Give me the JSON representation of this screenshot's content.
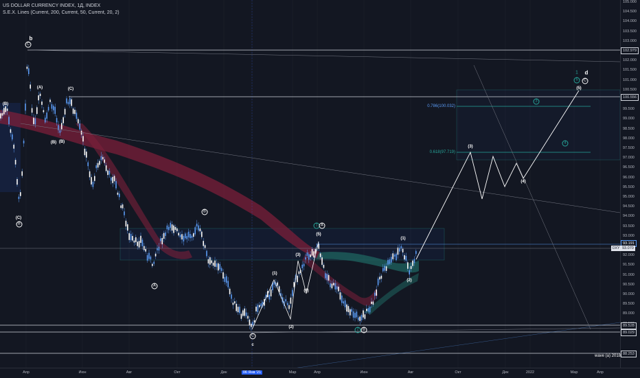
{
  "legend": {
    "symbol": "US DOLLAR CURRENCY INDEX, 1Д, INDEX",
    "indicator": "S.E.X. Lines (Current, 200, Current, 50, Current, 20, 2)"
  },
  "price_ticks": [
    "105.000",
    "104.500",
    "104.000",
    "103.500",
    "103.000",
    "102.500",
    "102.000",
    "101.500",
    "101.000",
    "100.500",
    "100.000",
    "99.500",
    "99.000",
    "98.500",
    "98.000",
    "97.500",
    "97.000",
    "96.500",
    "96.000",
    "95.500",
    "95.000",
    "94.500",
    "94.000",
    "93.500",
    "93.000",
    "92.500",
    "92.000",
    "91.500",
    "91.000",
    "90.500",
    "90.000",
    "89.500",
    "89.000",
    "88.500",
    "88.000"
  ],
  "time_ticks": [
    "Апр",
    "Июн",
    "Авг",
    "Окт",
    "Дек",
    "06 Янв '21",
    "Мар",
    "Апр",
    "Июн",
    "Авг",
    "Окт",
    "Дек",
    "2022",
    "Мар",
    "Апр"
  ],
  "price_labels": {
    "level_top": "102.979",
    "level_c": "100.556",
    "last_high": "93.191",
    "current": "93.070",
    "symbol_tag": "DXY",
    "level_low1": "89.528",
    "level_low2": "89.029",
    "level_bottom": "88.253"
  },
  "fib": {
    "f786": "0.786(100.032)",
    "f618": "0.618(97.719)"
  },
  "wave_labels": {
    "b": "b",
    "d": "d",
    "C": "C",
    "A": "A",
    "B": "B",
    "c": "c",
    "p_a": "(A)",
    "p_b": "(B)",
    "p_c": "(C)",
    "n1": "(1)",
    "n2": "(2)",
    "n3": "(3)",
    "n4": "(4)",
    "n5": "(5)",
    "g1": "1",
    "g2": "2",
    "g3": "3",
    "g4": "4",
    "g5": "5"
  },
  "note": "wave (a) 2018",
  "colors": {
    "background": "#131722",
    "candle": "#5b9cf6",
    "band_red": "#7b1f3a",
    "band_teal": "#1e5f5c",
    "fib_786": "#5b9cf6",
    "fib_618": "#26a69a",
    "line": "#ffffff",
    "current_label": "#131722",
    "highlight": "#2962ff"
  }
}
